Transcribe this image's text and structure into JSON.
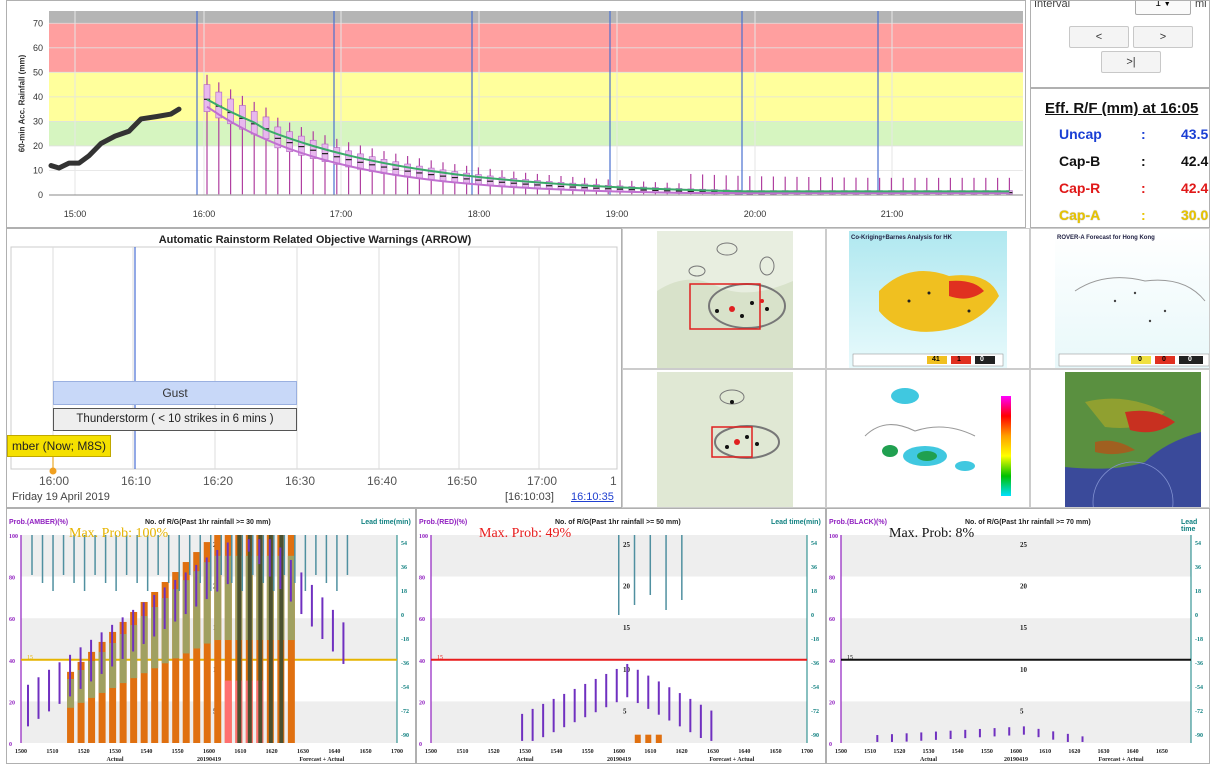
{
  "rainfall_chart": {
    "ylabel": "60-min Acc. Rainfall (mm)",
    "yticks": [
      "0",
      "10",
      "20",
      "30",
      "40",
      "50",
      "60",
      "70"
    ],
    "xticks": [
      "15:00",
      "16:00",
      "17:00",
      "18:00",
      "19:00",
      "20:00",
      "21:00"
    ]
  },
  "controls": {
    "interval_label": "Interval",
    "interval_value": "1",
    "interval_unit": "mi",
    "prev_label": "<",
    "next_label": ">",
    "last_label": ">|"
  },
  "eff_rf": {
    "title": "Eff. R/F (mm) at 16:05",
    "rows": [
      {
        "name": "Uncap",
        "value": "43.5",
        "color": "#1a3fd4"
      },
      {
        "name": "Cap-B",
        "value": "42.4",
        "color": "#111111"
      },
      {
        "name": "Cap-R",
        "value": "42.4",
        "color": "#e01818"
      },
      {
        "name": "Cap-A",
        "value": "30.0",
        "color": "#e8c400"
      }
    ]
  },
  "arrow": {
    "title": "Automatic Rainstorm Related Objective Warnings (ARROW)",
    "gust_label": "Gust",
    "thunder_label": "Thunderstorm ( < 10 strikes in 6 mins )",
    "amber_label": "mber (Now; M8S)",
    "times": [
      "16:00",
      "16:10",
      "16:20",
      "16:30",
      "16:40",
      "16:50",
      "17:00",
      "1"
    ],
    "date": "Friday 19 April 2019",
    "time_bracket": "[16:10:03]",
    "time_link": "16:10:35"
  },
  "thumbnails": {
    "cokriging_title": "Co-Kriging+Barnes Analysis for HK",
    "rover_title": "ROVER-A Forecast for Hong Kong",
    "legend1": [
      "41",
      "1",
      "0"
    ],
    "legend2": [
      "0",
      "0",
      "0"
    ]
  },
  "prob_panels": [
    {
      "prob_label": "Prob.(AMBER)(%)",
      "mid_label": "No. of R/G(Past 1hr rainfall >= 30 mm)",
      "right_label": "Lead time(min)",
      "max_prob": "Max. Prob: 100%",
      "color": "#e6b400",
      "threshold": "15"
    },
    {
      "prob_label": "Prob.(RED)(%)",
      "mid_label": "No. of R/G(Past 1hr rainfall >= 50 mm)",
      "right_label": "Lead time(min)",
      "max_prob": "Max. Prob: 49%",
      "color": "#e81c1c",
      "threshold": "15"
    },
    {
      "prob_label": "Prob.(BLACK)(%)",
      "mid_label": "No. of R/G(Past 1hr rainfall >= 70 mm)",
      "right_label": "Lead time",
      "max_prob": "Max. Prob: 8%",
      "color": "#111111",
      "threshold": "15"
    }
  ],
  "prob_axis": {
    "left_ticks": [
      "100",
      "80",
      "60",
      "40",
      "20",
      "0"
    ],
    "mid_ticks": [
      "25",
      "20",
      "15",
      "10",
      "5"
    ],
    "right_ticks": [
      "54",
      "36",
      "18",
      "0",
      "-18",
      "-36",
      "-54",
      "-72",
      "-90"
    ],
    "x_ticks": [
      "1500",
      "1510",
      "1520",
      "1530",
      "1540",
      "1550",
      "1600",
      "1610",
      "1620",
      "1630",
      "1640",
      "1650",
      "1700"
    ],
    "x_ticks_black": [
      "1500",
      "1510",
      "1520",
      "1530",
      "1540",
      "1550",
      "1600",
      "1610",
      "1620",
      "1630",
      "1640",
      "1650"
    ],
    "actual": "Actual",
    "date": "20190419",
    "forecast": "Forecast + Actual"
  }
}
